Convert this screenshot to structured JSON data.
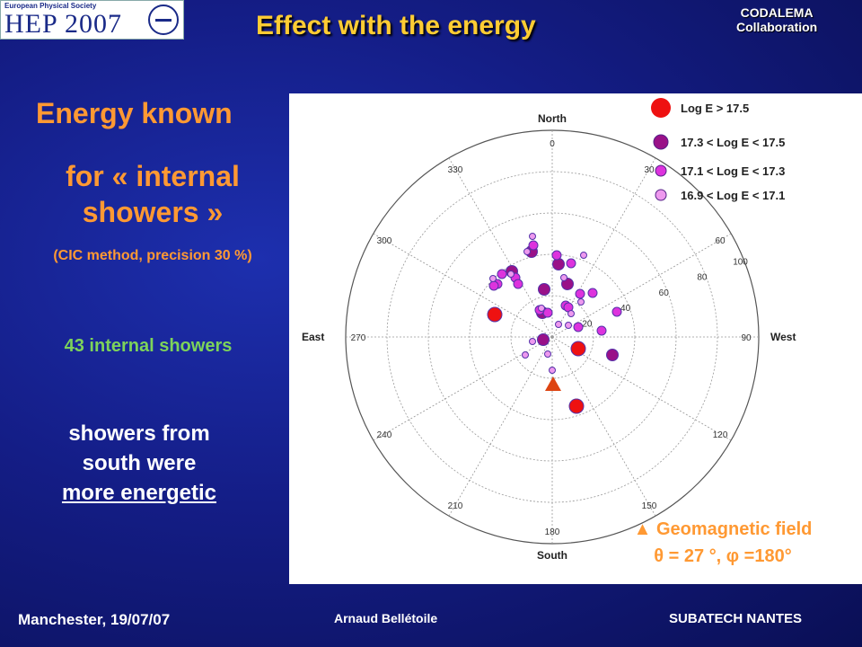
{
  "header": {
    "logo_small": "European Physical Society",
    "logo_big": "HEP 2007",
    "title": "Effect with the energy",
    "collab_line1": "CODALEMA",
    "collab_line2": "Collaboration"
  },
  "left": {
    "energy_known": "Energy known",
    "internal_line1": "for « internal",
    "internal_line2": "showers »",
    "method": "(CIC method, precision 30 %)",
    "count": "43 internal showers",
    "south_line1": "showers from",
    "south_line2": "south were",
    "south_line3": "more energetic"
  },
  "plot": {
    "north_label": "North",
    "south_label": "South",
    "east_label": "East",
    "west_label": "West",
    "azimuth_labels": [
      "0",
      "30",
      "60",
      "90",
      "120",
      "150",
      "180",
      "210",
      "240",
      "270",
      "300",
      "330"
    ],
    "zenith_labels": [
      "20",
      "40",
      "60",
      "80",
      "100"
    ],
    "legend": [
      {
        "text": "Log E > 17.5",
        "color": "#ee1111"
      },
      {
        "text": "17.3  < Log E < 17.5",
        "color": "#991188"
      },
      {
        "text": "17.1  < Log E < 17.3",
        "color": "#dd33dd"
      },
      {
        "text": "16.9  < Log E < 17.1",
        "color": "#ee99ee"
      }
    ],
    "marker_color": "#dd4411"
  },
  "geo": {
    "line1": "▲ Geomagnetic field",
    "line2": "θ  = 27 °, φ =180°"
  },
  "footer": {
    "left": "Manchester, 19/07/07",
    "middle": "Arnaud Bellétoile",
    "right": "SUBATECH NANTES"
  }
}
